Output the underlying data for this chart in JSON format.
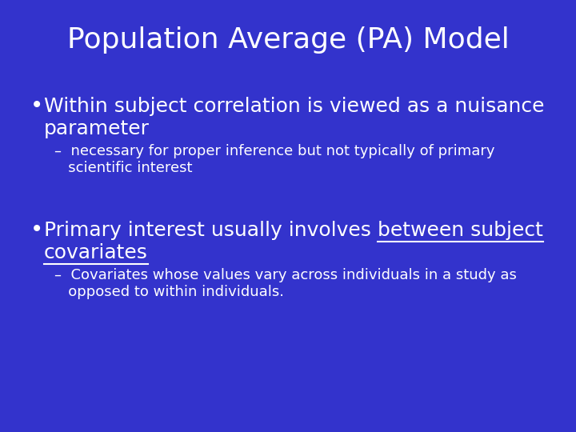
{
  "background_color": "#3333cc",
  "title": "Population Average (PA) Model",
  "title_color": "#ffffff",
  "title_fontsize": 26,
  "text_color": "#ffffff",
  "bullet1_text_line1": "Within subject correlation is viewed as a nuisance",
  "bullet1_text_line2": "parameter",
  "bullet1_fontsize": 18,
  "sub1_line1": "–  necessary for proper inference but not typically of primary",
  "sub1_line2": "   scientific interest",
  "sub1_fontsize": 13,
  "bullet2_plain": "Primary interest usually involves ",
  "bullet2_underlined": "between subject",
  "bullet2_line2_underlined": "covariates",
  "bullet2_fontsize": 18,
  "sub2_line1": "–  Covariates whose values vary across individuals in a study as",
  "sub2_line2": "   opposed to within individuals.",
  "sub2_fontsize": 13,
  "bullet_symbol": "•",
  "bullet_dot_fontsize": 20
}
